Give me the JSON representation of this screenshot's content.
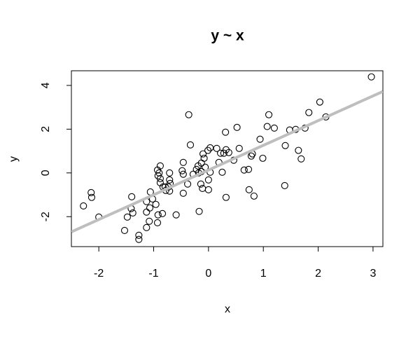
{
  "chart_data": {
    "type": "scatter",
    "title": "y ~ x",
    "xlabel": "x",
    "ylabel": "y",
    "x": [
      2.97,
      2.03,
      1.83,
      2.14,
      1.1,
      1.07,
      1.2,
      0.52,
      0.31,
      -0.36,
      0.94,
      1.48,
      1.59,
      1.76,
      1.4,
      1.64,
      1.69,
      0.99,
      0.78,
      0.8,
      0.56,
      1.39,
      0.83,
      0.74,
      0.73,
      0.65,
      0.46,
      0.37,
      0.28,
      0.32,
      0.22,
      0.19,
      0.25,
      0.32,
      0.15,
      0.03,
      -0.01,
      -0.1,
      -0.08,
      -0.13,
      -0.06,
      -0.13,
      0.03,
      0.0,
      -0.18,
      -0.22,
      -0.19,
      -0.14,
      -0.11,
      0.0,
      -0.17,
      -0.33,
      -0.28,
      -0.38,
      -0.46,
      -0.46,
      -0.48,
      -0.46,
      -0.59,
      -0.71,
      -0.71,
      -0.7,
      -0.73,
      -0.71,
      -0.78,
      -0.79,
      -0.88,
      -0.88,
      -0.9,
      -0.93,
      -0.88,
      -0.92,
      -0.83,
      -0.84,
      -0.96,
      -0.92,
      -1.02,
      -1.06,
      -1.07,
      -1.13,
      -1.13,
      -1.08,
      -0.93,
      -1.13,
      -1.27,
      -1.27,
      -1.4,
      -1.41,
      -1.38,
      -1.48,
      -1.53,
      -2.14,
      -2.13,
      -2.0,
      -2.28
    ],
    "values": [
      4.39,
      3.24,
      2.76,
      2.56,
      2.66,
      2.12,
      2.05,
      2.08,
      1.86,
      2.66,
      1.54,
      1.96,
      1.99,
      2.05,
      1.25,
      1.03,
      0.64,
      0.67,
      0.77,
      0.87,
      1.12,
      -0.58,
      -1.06,
      -0.77,
      0.16,
      0.13,
      0.58,
      0.93,
      0.9,
      1.06,
      0.9,
      0.48,
      0.03,
      -1.12,
      1.12,
      1.15,
      1.03,
      0.87,
      0.67,
      0.45,
      0.26,
      0.06,
      0.03,
      -0.32,
      0.0,
      0.16,
      0.32,
      -0.51,
      -0.71,
      -0.77,
      -1.76,
      1.28,
      -0.06,
      -0.51,
      -0.93,
      0.48,
      0.1,
      -0.06,
      -1.92,
      0.0,
      -0.32,
      -0.48,
      -0.64,
      -0.83,
      -0.8,
      -0.64,
      -0.45,
      -0.26,
      0.0,
      0.13,
      0.32,
      -0.13,
      -0.64,
      -1.86,
      -1.44,
      -1.92,
      -1.19,
      -0.87,
      -1.6,
      -1.31,
      -1.79,
      -2.21,
      -2.28,
      -2.5,
      -2.85,
      -3.04,
      -1.09,
      -1.63,
      -1.83,
      -2.02,
      -2.63,
      -0.9,
      -1.12,
      -2.02,
      -1.51
    ],
    "color": "#000000",
    "fit": {
      "intercept": 0.13,
      "slope": 1.13,
      "color": "#bebebe"
    },
    "xlim": [
      -2.5,
      3.18
    ],
    "ylim": [
      -3.37,
      4.67
    ],
    "xticks": [
      -2,
      -1,
      0,
      1,
      2,
      3
    ],
    "yticks": [
      -2,
      0,
      2,
      4
    ],
    "grid": false
  }
}
